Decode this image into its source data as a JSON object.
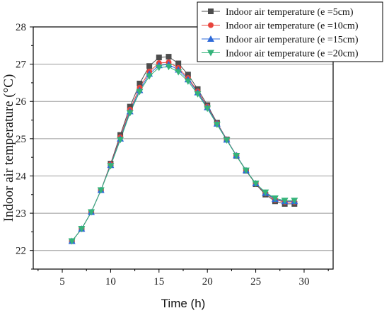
{
  "chart_data": {
    "type": "line",
    "xlabel": "Time (h)",
    "ylabel": "Indoor air temperature (°C)",
    "xlim": [
      2,
      33
    ],
    "ylim": [
      21.5,
      28
    ],
    "xticks": [
      5,
      10,
      15,
      20,
      25,
      30
    ],
    "yticks": [
      22,
      23,
      24,
      25,
      26,
      27,
      28
    ],
    "grid": "horizontal",
    "legend": "top-right",
    "x": [
      6,
      7,
      8,
      9,
      10,
      11,
      12,
      13,
      14,
      15,
      16,
      17,
      18,
      19,
      20,
      21,
      22,
      23,
      24,
      25,
      26,
      27,
      28,
      29
    ],
    "series": [
      {
        "name": "Indoor air temperature (e =5cm)",
        "color": "#4d4d4d",
        "marker": "square",
        "values": [
          22.25,
          22.58,
          23.03,
          23.62,
          24.33,
          25.1,
          25.86,
          26.48,
          26.95,
          27.18,
          27.2,
          27.02,
          26.72,
          26.33,
          25.9,
          25.43,
          24.98,
          24.54,
          24.14,
          23.78,
          23.5,
          23.32,
          23.25,
          23.25
        ]
      },
      {
        "name": "Indoor air temperature (e =10cm)",
        "color": "#e8443c",
        "marker": "circle",
        "values": [
          22.25,
          22.58,
          23.03,
          23.62,
          24.31,
          25.04,
          25.78,
          26.37,
          26.8,
          27.03,
          27.05,
          26.9,
          26.63,
          26.27,
          25.86,
          25.41,
          24.98,
          24.55,
          24.15,
          23.79,
          23.53,
          23.36,
          23.3,
          23.3
        ]
      },
      {
        "name": "Indoor air temperature (e =15cm)",
        "color": "#2e6ad8",
        "marker": "triangle-up",
        "values": [
          22.25,
          22.58,
          23.03,
          23.62,
          24.29,
          25.0,
          25.73,
          26.3,
          26.74,
          26.97,
          26.99,
          26.85,
          26.59,
          26.24,
          25.84,
          25.4,
          24.97,
          24.55,
          24.15,
          23.8,
          23.54,
          23.38,
          23.32,
          23.32
        ]
      },
      {
        "name": "Indoor air temperature (e =20cm)",
        "color": "#34b37a",
        "marker": "triangle-down",
        "values": [
          22.25,
          22.58,
          23.03,
          23.62,
          24.27,
          24.97,
          25.69,
          26.26,
          26.68,
          26.91,
          26.93,
          26.79,
          26.54,
          26.2,
          25.81,
          25.38,
          24.96,
          24.54,
          24.15,
          23.8,
          23.56,
          23.4,
          23.34,
          23.34
        ]
      }
    ]
  }
}
